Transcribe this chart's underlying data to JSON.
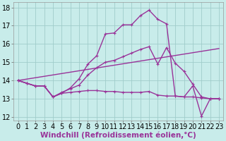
{
  "xlabel": "Windchill (Refroidissement éolien,°C)",
  "bg_color": "#c8ecea",
  "grid_color": "#a0ccca",
  "line_color": "#993399",
  "xlim": [
    -0.5,
    23.5
  ],
  "ylim": [
    11.8,
    18.3
  ],
  "yticks": [
    12,
    13,
    14,
    15,
    16,
    17,
    18
  ],
  "xticks": [
    0,
    1,
    2,
    3,
    4,
    5,
    6,
    7,
    8,
    9,
    10,
    11,
    12,
    13,
    14,
    15,
    16,
    17,
    18,
    19,
    20,
    21,
    22,
    23
  ],
  "line1_x": [
    0,
    1,
    2,
    3,
    4,
    5,
    6,
    7,
    8,
    9,
    10,
    11,
    12,
    13,
    14,
    15,
    16,
    17,
    18,
    19,
    20,
    21,
    22,
    23
  ],
  "line1_y": [
    14.0,
    13.85,
    13.7,
    13.7,
    13.1,
    13.3,
    13.6,
    14.1,
    14.9,
    15.35,
    16.55,
    16.6,
    17.05,
    17.05,
    17.55,
    17.85,
    17.35,
    17.1,
    13.15,
    13.1,
    13.7,
    12.05,
    13.0,
    13.0
  ],
  "line2_x": [
    0,
    1,
    2,
    3,
    4,
    5,
    6,
    7,
    8,
    9,
    10,
    11,
    12,
    13,
    14,
    15,
    16,
    17,
    18,
    19,
    20,
    21,
    22,
    23
  ],
  "line2_y": [
    14.0,
    13.85,
    13.7,
    13.7,
    13.1,
    13.35,
    13.55,
    13.75,
    14.3,
    14.7,
    15.0,
    15.1,
    15.3,
    15.5,
    15.7,
    15.85,
    14.9,
    15.8,
    14.95,
    14.5,
    13.8,
    13.1,
    13.0,
    13.0
  ],
  "line3_x": [
    0,
    1,
    2,
    3,
    4,
    5,
    6,
    7,
    8,
    9,
    10,
    11,
    12,
    13,
    14,
    15,
    16,
    17,
    18,
    19,
    20,
    21,
    22,
    23
  ],
  "line3_y": [
    14.0,
    13.85,
    13.7,
    13.7,
    13.1,
    13.3,
    13.35,
    13.4,
    13.45,
    13.45,
    13.4,
    13.4,
    13.35,
    13.35,
    13.35,
    13.4,
    13.2,
    13.15,
    13.15,
    13.1,
    13.1,
    13.05,
    13.0,
    13.0
  ],
  "line4_x": [
    0,
    23
  ],
  "line4_y": [
    14.0,
    15.75
  ],
  "font_size": 7,
  "xlabel_fontsize": 7.5,
  "line_width": 1.0,
  "marker_size": 3.5
}
